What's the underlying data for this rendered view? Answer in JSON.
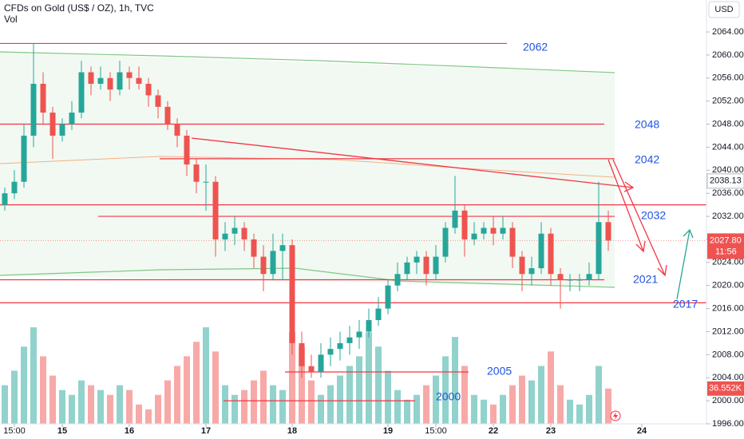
{
  "chart_data": {
    "type": "candlestick",
    "title": "CFDs on Gold (US$ / OZ), 1h, TVC",
    "volume_title": "Vol",
    "currency": "USD",
    "up_color": "#26a69a",
    "down_color": "#ef5350",
    "level_color": "#f23645",
    "open": [
      2034,
      2036,
      2038,
      2046,
      2055,
      2050,
      2046,
      2048,
      2050,
      2057,
      2055,
      2056,
      2054,
      2057,
      2056,
      2055,
      2053,
      2051,
      2048,
      2046,
      2041,
      2038,
      2038,
      2028,
      2029,
      2030,
      2028,
      2025,
      2022,
      2026,
      2027,
      2010,
      2006,
      2005,
      2008,
      2009,
      2010,
      2011,
      2012,
      2014,
      2016,
      2020,
      2022,
      2024,
      2025,
      2022,
      2025,
      2030,
      2033,
      2028,
      2029,
      2030,
      2029,
      2030,
      2025,
      2022,
      2023,
      2029,
      2022,
      2021,
      2021,
      2021,
      2022,
      2031
    ],
    "high": [
      2037,
      2040,
      2048,
      2062,
      2057,
      2051,
      2049,
      2052,
      2059,
      2058,
      2058,
      2057,
      2059,
      2058,
      2058,
      2056,
      2054,
      2052,
      2049,
      2047,
      2042,
      2041,
      2039,
      2031,
      2032,
      2031,
      2029,
      2027,
      2029,
      2029,
      2028,
      2012,
      2008,
      2010,
      2011,
      2012,
      2013,
      2014,
      2016,
      2018,
      2021,
      2024,
      2025,
      2026,
      2026,
      2027,
      2031,
      2039,
      2034,
      2031,
      2031,
      2032,
      2032,
      2031,
      2026,
      2025,
      2031,
      2030,
      2023,
      2022,
      2022,
      2024,
      2038,
      2033
    ],
    "low": [
      2033,
      2035,
      2037,
      2044,
      2048,
      2042,
      2045,
      2047,
      2049,
      2053,
      2054,
      2052,
      2053,
      2054,
      2054,
      2051,
      2049,
      2047,
      2044,
      2039,
      2036,
      2033,
      2025,
      2026,
      2027,
      2026,
      2023,
      2019,
      2021,
      2021,
      2008,
      2004,
      2004,
      2004,
      2006,
      2007,
      2008,
      2009,
      2011,
      2013,
      2015,
      2019,
      2021,
      2022,
      2020,
      2021,
      2024,
      2029,
      2025,
      2027,
      2028,
      2027,
      2028,
      2023,
      2019,
      2020,
      2022,
      2020,
      2016,
      2019,
      2019,
      2020,
      2021,
      2026
    ],
    "close": [
      2036,
      2038,
      2046,
      2055,
      2050,
      2046,
      2048,
      2050,
      2057,
      2055,
      2056,
      2054,
      2057,
      2056,
      2055,
      2053,
      2051,
      2048,
      2046,
      2041,
      2038,
      2038,
      2028,
      2029,
      2030,
      2028,
      2025,
      2022,
      2026,
      2027,
      2010,
      2006,
      2005,
      2008,
      2009,
      2010,
      2011,
      2012,
      2014,
      2016,
      2020,
      2022,
      2024,
      2025,
      2022,
      2025,
      2030,
      2033,
      2028,
      2029,
      2030,
      2029,
      2030,
      2025,
      2022,
      2023,
      2029,
      2022,
      2021,
      2021,
      2021,
      2022,
      2031,
      2027.8
    ],
    "volume": [
      40000,
      55000,
      80000,
      100000,
      70000,
      50000,
      35000,
      30000,
      45000,
      40000,
      35000,
      30000,
      40000,
      35000,
      20000,
      15000,
      30000,
      45000,
      60000,
      70000,
      85000,
      100000,
      75000,
      40000,
      30000,
      35000,
      45000,
      55000,
      40000,
      35000,
      95000,
      80000,
      45000,
      30000,
      40000,
      50000,
      60000,
      70000,
      95000,
      80000,
      55000,
      35000,
      25000,
      30000,
      40000,
      50000,
      70000,
      90000,
      60000,
      30000,
      25000,
      20000,
      30000,
      40000,
      50000,
      45000,
      60000,
      75000,
      40000,
      25000,
      20000,
      30000,
      60000,
      36552
    ],
    "xlim": [
      -0.5,
      73.25
    ],
    "xticks": [
      {
        "value": 1,
        "label": "15:00"
      },
      {
        "value": 6,
        "label": "15"
      },
      {
        "value": 13,
        "label": "16"
      },
      {
        "value": 21,
        "label": "17"
      },
      {
        "value": 30,
        "label": "18"
      },
      {
        "value": 40,
        "label": "19"
      },
      {
        "value": 45,
        "label": "15:00"
      },
      {
        "value": 51,
        "label": "22"
      },
      {
        "value": 57,
        "label": "23"
      },
      {
        "value": 66.5,
        "label": "24"
      }
    ],
    "ylim": [
      1996,
      2069.54
    ],
    "yticks": [
      {
        "value": 2064,
        "label": "2064.00"
      },
      {
        "value": 2060,
        "label": "2060.00"
      },
      {
        "value": 2056,
        "label": "2056.00"
      },
      {
        "value": 2052,
        "label": "2052.00"
      },
      {
        "value": 2048,
        "label": "2048.00"
      },
      {
        "value": 2044,
        "label": "2044.00"
      },
      {
        "value": 2040,
        "label": "2040.00"
      },
      {
        "value": 2036,
        "label": "2036.00"
      },
      {
        "value": 2032,
        "label": "2032.00"
      },
      {
        "value": 2028,
        "label": "2028.00"
      },
      {
        "value": 2024,
        "label": "2024.00"
      },
      {
        "value": 2020,
        "label": "2020.00"
      },
      {
        "value": 2016,
        "label": "2016.00"
      },
      {
        "value": 2012,
        "label": "2012.00"
      },
      {
        "value": 2008,
        "label": "2008.00"
      },
      {
        "value": 2004,
        "label": "2004.00"
      },
      {
        "value": 2000,
        "label": "2000.00"
      },
      {
        "value": 1996,
        "label": "1996.00"
      }
    ],
    "vlim": [
      0,
      110000
    ],
    "levels": [
      2062,
      2048,
      2042,
      2034,
      2032,
      2021,
      2017,
      2005,
      2000
    ],
    "marker_price": {
      "value": 2038.13,
      "label": "2038.13"
    },
    "last_price": {
      "value": 2027.8,
      "label": "2027.80"
    },
    "countdown": "11:56",
    "last_volume": {
      "value": 36552,
      "label": "36.552K"
    }
  }
}
